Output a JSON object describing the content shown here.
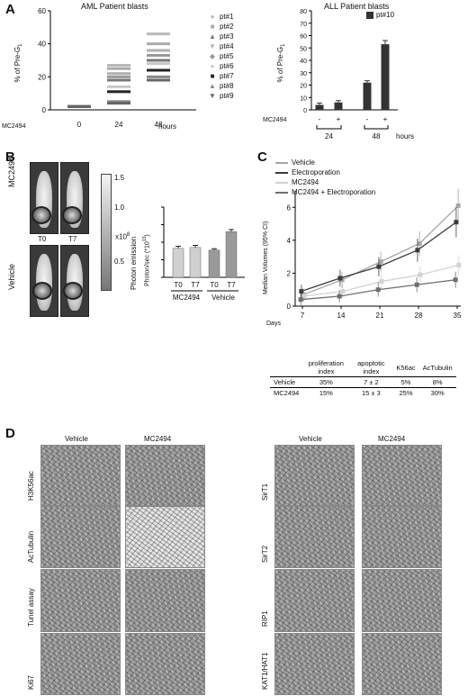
{
  "panels": {
    "A": "A",
    "B": "B",
    "C": "C",
    "D": "D"
  },
  "aml": {
    "title": "AML Patient blasts",
    "ylabel": "% of Pre-G",
    "ylabel_sub": "1",
    "yticks": [
      "0",
      "20",
      "40",
      "60"
    ],
    "xticks": [
      "0",
      "24",
      "48"
    ],
    "row_label": "MC2494",
    "hours": "hours",
    "legend": [
      {
        "label": "pt#1",
        "symbol": "●",
        "color": "#b8b8b8"
      },
      {
        "label": "pt#2",
        "symbol": "■",
        "color": "#a9a9a9"
      },
      {
        "label": "pt#3",
        "symbol": "▲",
        "color": "#777777"
      },
      {
        "label": "pt#4",
        "symbol": "▼",
        "color": "#b0b0b0"
      },
      {
        "label": "pt#5",
        "symbol": "◆",
        "color": "#999999"
      },
      {
        "label": "pt#6",
        "symbol": "●",
        "color": "#c8c8c8"
      },
      {
        "label": "pt#7",
        "symbol": "■",
        "color": "#222222"
      },
      {
        "label": "pt#8",
        "symbol": "▲",
        "color": "#888888"
      },
      {
        "label": "pt#9",
        "symbol": "▼",
        "color": "#666666"
      }
    ]
  },
  "all": {
    "title": "ALL Patient blasts",
    "legend": "pt#10",
    "ylabel": "% of Pre-G",
    "ylabel_sub": "1",
    "yticks": [
      "0",
      "10",
      "20",
      "30",
      "40",
      "50",
      "60",
      "70",
      "80"
    ],
    "row_label": "MC2494",
    "signs": [
      "-",
      "+",
      "-",
      "+"
    ],
    "groups": [
      "24",
      "48"
    ],
    "hours": "hours"
  },
  "b": {
    "row_top": "MC2494",
    "row_bottom": "Vehicle",
    "t0": "T0",
    "t7": "T7",
    "scale_ticks": [
      "1.5",
      "1.0",
      "x10",
      "0.5"
    ],
    "scale_exp": "8",
    "scale_label": "Photon emission",
    "ylabel": "Photon/sec (*10",
    "ylabel_exp": "13",
    "ylabel_end": ")",
    "xticks": [
      "T0",
      "T7",
      "T0",
      "T7"
    ],
    "groups": [
      "MC2494",
      "Vehicle"
    ]
  },
  "c": {
    "ylabel": "Median Volumes (95% CI)",
    "xlabel": "Days",
    "yticks": [
      "0",
      "2",
      "4",
      "6"
    ],
    "xticks": [
      "7",
      "14",
      "21",
      "28",
      "35"
    ],
    "legend": [
      {
        "label": "Vehicle",
        "color": "#a6a6a6"
      },
      {
        "label": "Electroporation",
        "color": "#3c3c3c"
      },
      {
        "label": "MC2494",
        "color": "#d2d2d2"
      },
      {
        "label": "MC2494  + Electroporation",
        "color": "#6e6e6e"
      }
    ],
    "table": {
      "headers": [
        "proliferation index",
        "apoptotic index",
        "K56ac",
        "AcTubulin"
      ],
      "rows": [
        {
          "label": "Vehicle",
          "cells": [
            "35%",
            "7 ± 2",
            "5%",
            "8%"
          ]
        },
        {
          "label": "MC2494",
          "cells": [
            "15%",
            "15 ± 3",
            "25%",
            "30%"
          ]
        }
      ]
    }
  },
  "d": {
    "col_vehicle": "Vehicle",
    "col_mc2494": "MC2494",
    "left_rows": [
      "H3K56ac",
      "AcTubulin",
      "Tunel assay",
      "Ki67"
    ],
    "right_rows": [
      "SirT1",
      "SirT2",
      "RIP1",
      "KAT1/HAT1"
    ]
  },
  "chart_data": [
    {
      "type": "scatter",
      "title": "AML Patient blasts",
      "xlabel": "MC2494 hours",
      "ylabel": "% of Pre-G1",
      "categories": [
        "0",
        "24",
        "48"
      ],
      "ylim": [
        0,
        60
      ],
      "series": [
        {
          "name": "pt#1",
          "values": [
            2,
            27,
            46
          ]
        },
        {
          "name": "pt#2",
          "values": [
            2,
            25,
            40
          ]
        },
        {
          "name": "pt#3",
          "values": [
            2,
            18,
            30
          ]
        },
        {
          "name": "pt#4",
          "values": [
            2,
            22,
            36
          ]
        },
        {
          "name": "pt#5",
          "values": [
            2,
            20,
            33
          ]
        },
        {
          "name": "pt#6",
          "values": [
            2,
            14,
            28
          ]
        },
        {
          "name": "pt#7",
          "values": [
            2,
            11,
            24
          ]
        },
        {
          "name": "pt#8",
          "values": [
            2,
            5,
            20
          ]
        },
        {
          "name": "pt#9",
          "values": [
            2,
            4,
            18
          ]
        }
      ]
    },
    {
      "type": "bar",
      "title": "ALL Patient blasts",
      "ylabel": "% of Pre-G1",
      "categories": [
        "24 -",
        "24 +",
        "48 -",
        "48 +"
      ],
      "series": [
        {
          "name": "pt#10",
          "values": [
            4,
            6,
            22,
            53
          ],
          "errors": [
            1.5,
            1.5,
            1.5,
            3
          ]
        }
      ],
      "ylim": [
        0,
        80
      ]
    },
    {
      "type": "bar",
      "ylabel": "Photon/sec (*10^13)",
      "categories": [
        "MC2494 T0",
        "MC2494 T7",
        "Vehicle T0",
        "Vehicle T7"
      ],
      "series": [
        {
          "values": [
            1.65,
            1.7,
            1.55,
            2.6
          ],
          "errors": [
            0.12,
            0.12,
            0.08,
            0.12
          ]
        }
      ],
      "ylim": [
        0,
        4
      ]
    },
    {
      "type": "line",
      "xlabel": "Days",
      "ylabel": "Median Volumes (95% CI)",
      "x": [
        7,
        14,
        21,
        28,
        35
      ],
      "ylim": [
        0,
        7
      ],
      "series": [
        {
          "name": "Vehicle",
          "values": [
            0.7,
            1.6,
            2.7,
            3.8,
            6.1
          ]
        },
        {
          "name": "Electroporation",
          "values": [
            0.9,
            1.7,
            2.4,
            3.4,
            5.1
          ]
        },
        {
          "name": "MC2494",
          "values": [
            0.6,
            0.9,
            1.5,
            1.9,
            2.5
          ]
        },
        {
          "name": "MC2494  + Electroporation",
          "values": [
            0.4,
            0.6,
            1.0,
            1.3,
            1.6
          ]
        }
      ]
    }
  ]
}
